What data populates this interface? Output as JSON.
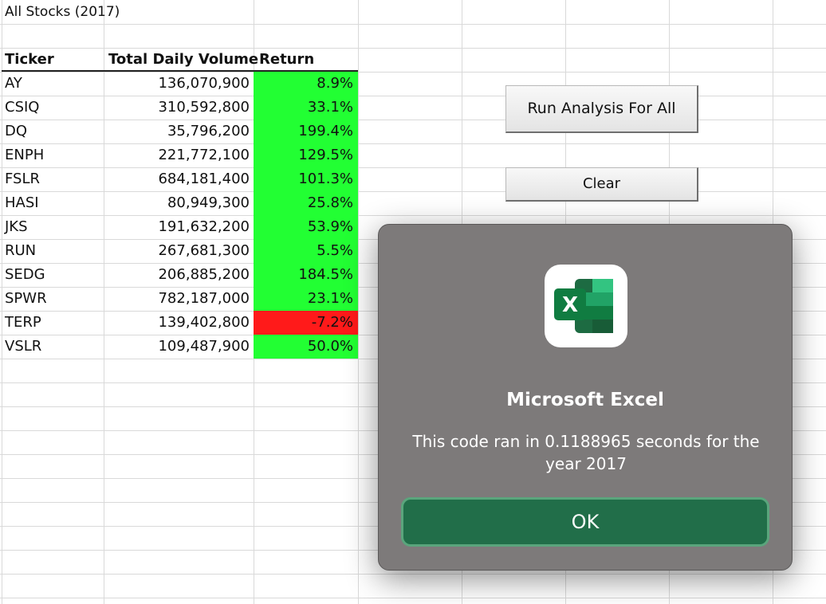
{
  "sheet": {
    "title": "All Stocks (2017)",
    "headers": {
      "ticker": "Ticker",
      "volume": "Total Daily Volume",
      "return": "Return"
    },
    "rows": [
      {
        "ticker": "AY",
        "volume": "136,070,900",
        "return": "8.9%",
        "positive": true
      },
      {
        "ticker": "CSIQ",
        "volume": "310,592,800",
        "return": "33.1%",
        "positive": true
      },
      {
        "ticker": "DQ",
        "volume": "35,796,200",
        "return": "199.4%",
        "positive": true
      },
      {
        "ticker": "ENPH",
        "volume": "221,772,100",
        "return": "129.5%",
        "positive": true
      },
      {
        "ticker": "FSLR",
        "volume": "684,181,400",
        "return": "101.3%",
        "positive": true
      },
      {
        "ticker": "HASI",
        "volume": "80,949,300",
        "return": "25.8%",
        "positive": true
      },
      {
        "ticker": "JKS",
        "volume": "191,632,200",
        "return": "53.9%",
        "positive": true
      },
      {
        "ticker": "RUN",
        "volume": "267,681,300",
        "return": "5.5%",
        "positive": true
      },
      {
        "ticker": "SEDG",
        "volume": "206,885,200",
        "return": "184.5%",
        "positive": true
      },
      {
        "ticker": "SPWR",
        "volume": "782,187,000",
        "return": "23.1%",
        "positive": true
      },
      {
        "ticker": "TERP",
        "volume": "139,402,800",
        "return": "-7.2%",
        "positive": false
      },
      {
        "ticker": "VSLR",
        "volume": "109,487,900",
        "return": "50.0%",
        "positive": true
      }
    ],
    "colors": {
      "positive": "#22ff33",
      "negative": "#ff1a1a"
    }
  },
  "buttons": {
    "run_all": "Run Analysis For All",
    "clear": "Clear"
  },
  "dialog": {
    "icon": "excel-app-icon",
    "title": "Microsoft Excel",
    "message": "This code ran in 0.1188965 seconds for the year 2017",
    "ok_label": "OK"
  }
}
